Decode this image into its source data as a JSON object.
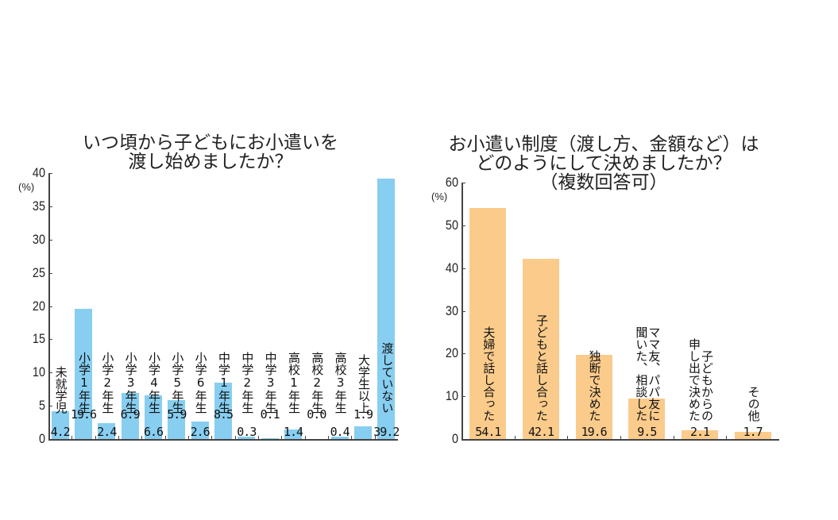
{
  "chart_data": [
    {
      "type": "bar",
      "title": "いつ頃から子どもにお小遣いを渡し始めましたか？",
      "title_lines": [
        "いつ頃から子どもにお小遣いを",
        "渡し始めましたか？"
      ],
      "ylabel": "(%)",
      "ylim": [
        0,
        40
      ],
      "yticks": [
        0,
        5,
        10,
        15,
        20,
        25,
        30,
        35,
        40
      ],
      "grid": false,
      "color": "#87CEF0",
      "categories": [
        "未就学児",
        "小学1年生",
        "小学2年生",
        "小学3年生",
        "小学4年生",
        "小学5年生",
        "小学6年生",
        "中学1年生",
        "中学2年生",
        "中学3年生",
        "高校1年生",
        "高校2年生",
        "高校3年生",
        "大学生以上",
        "渡していない"
      ],
      "values": [
        4.2,
        19.6,
        2.4,
        6.9,
        6.6,
        5.9,
        2.6,
        8.5,
        0.3,
        0.1,
        1.4,
        0.0,
        0.4,
        1.9,
        39.2
      ],
      "value_labels": [
        "4.2",
        "19.6",
        "2.4",
        "6.9",
        "6.6",
        "5.9",
        "2.6",
        "8.5",
        "0.3",
        "0.1",
        "1.4",
        "0.0",
        "0.4",
        "1.9",
        "39.2"
      ]
    },
    {
      "type": "bar",
      "title": "お小遣い制度（渡し方、金額など）はどのようにして決めましたか？（複数回答可）",
      "title_lines": [
        "お小遣い制度（渡し方、金額など）は",
        "どのようにして決めましたか？",
        "（複数回答可）"
      ],
      "ylabel": "(%)",
      "ylim": [
        0,
        60
      ],
      "yticks": [
        0,
        10,
        20,
        30,
        40,
        50,
        60
      ],
      "grid": false,
      "color": "#FBCB8B",
      "categories": [
        "夫婦で話し合った",
        "子どもと話し合った",
        "独断で決めた",
        "ママ友、パパ友に聞いた、相談した",
        "子どもからの申し出で決めた",
        "その他"
      ],
      "category_label_columns": [
        [
          "夫婦で話し合った"
        ],
        [
          "子どもと話し合った"
        ],
        [
          "独断で決めた"
        ],
        [
          "ママ友、パパ友に",
          "聞いた、相談した"
        ],
        [
          "子どもからの",
          "申し出で決めた"
        ],
        [
          "その他"
        ]
      ],
      "values": [
        54.1,
        42.1,
        19.6,
        9.5,
        2.1,
        1.7
      ],
      "value_labels": [
        "54.1",
        "42.1",
        "19.6",
        "9.5",
        "2.1",
        "1.7"
      ]
    }
  ]
}
